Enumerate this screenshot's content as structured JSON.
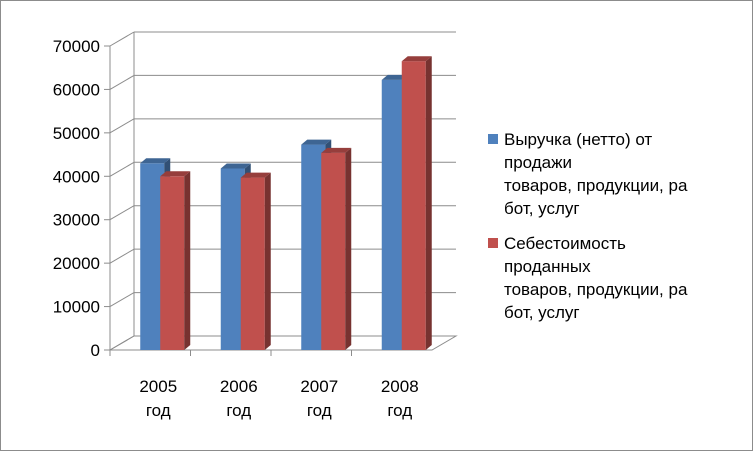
{
  "chart_data": {
    "type": "bar",
    "categories": [
      "2005 год",
      "2006 год",
      "2007 год",
      "2008 год"
    ],
    "series": [
      {
        "name": "Выручка (нетто) от продажи товаров, продукции, работ, услуг",
        "label_lines": [
          "Выручка (нетто) от",
          "продажи",
          "товаров, продукции, ра",
          "бот, услуг"
        ],
        "color": "#4f81bd",
        "values": [
          43000,
          41800,
          47300,
          62200
        ]
      },
      {
        "name": "Себестоимость проданных товаров, продукции, работ, услуг",
        "label_lines": [
          "Себестоимость",
          "проданных",
          "товаров, продукции, ра",
          "бот, услуг"
        ],
        "color": "#c0504d",
        "values": [
          40000,
          39700,
          45400,
          66500
        ]
      }
    ],
    "yticks": [
      "0",
      "10000",
      "20000",
      "30000",
      "40000",
      "50000",
      "60000",
      "70000"
    ],
    "ylim": [
      0,
      70000
    ],
    "grid": true,
    "legend": "right",
    "three_d": true
  }
}
